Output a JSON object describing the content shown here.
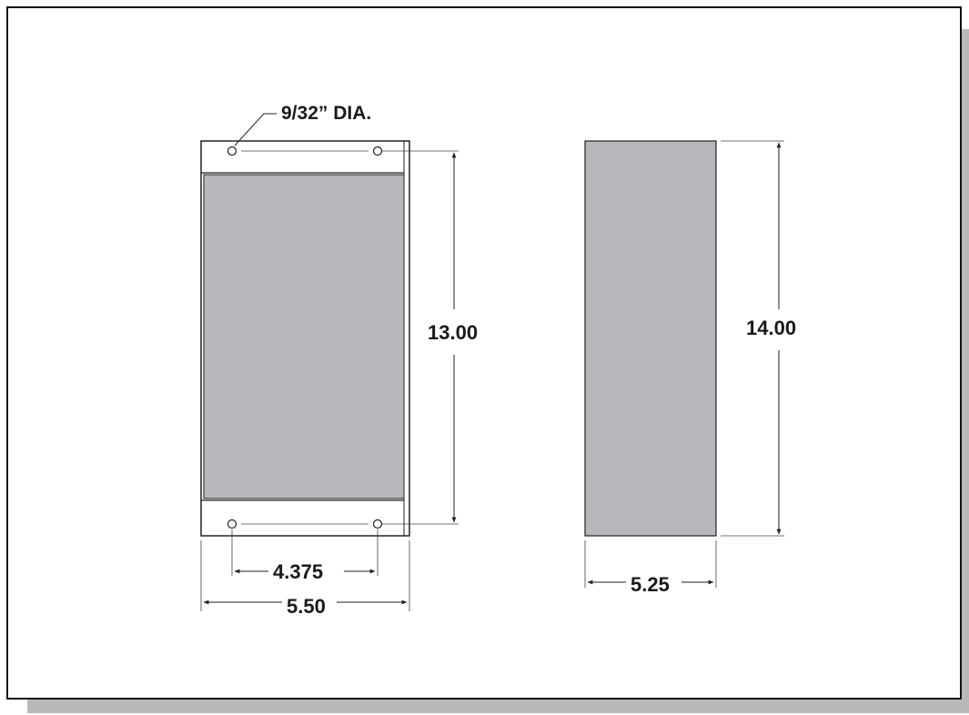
{
  "colors": {
    "frame": "#111111",
    "shadow": "#b9b9bb",
    "panel": "#b7b8bb",
    "line": "#222222",
    "background": "#ffffff"
  },
  "labels": {
    "hole_diameter": "9/32” DIA.",
    "mount_height": "13.00",
    "hole_spacing": "4.375",
    "front_width": "5.50",
    "side_height": "14.00",
    "side_depth": "5.25"
  }
}
